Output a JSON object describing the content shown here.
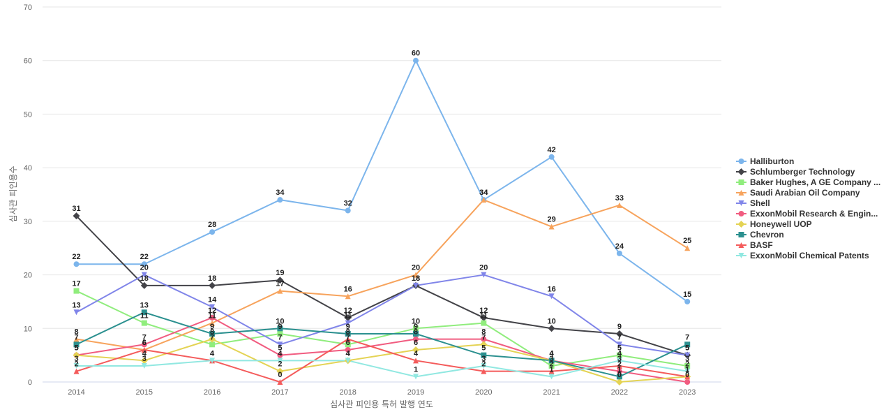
{
  "chart_data": {
    "type": "line",
    "xlabel": "심사관 피인용 특허 발행 연도",
    "ylabel": "심사관 피인용수",
    "ylim": [
      0,
      70
    ],
    "yticks": [
      0,
      10,
      20,
      30,
      40,
      50,
      60,
      70
    ],
    "grid": true,
    "legend_position": "right",
    "categories": [
      "2014",
      "2015",
      "2016",
      "2017",
      "2018",
      "2019",
      "2020",
      "2021",
      "2022",
      "2023"
    ],
    "series": [
      {
        "name": "Halliburton",
        "color": "#7cb5ec",
        "marker": "circle",
        "values": [
          22,
          22,
          28,
          34,
          32,
          60,
          34,
          42,
          24,
          15
        ]
      },
      {
        "name": "Schlumberger Technology",
        "color": "#434348",
        "marker": "diamond",
        "values": [
          31,
          18,
          18,
          19,
          12,
          18,
          12,
          10,
          9,
          5
        ]
      },
      {
        "name": "Baker Hughes, A GE Company ...",
        "color": "#90ed7d",
        "marker": "square",
        "values": [
          17,
          11,
          7,
          9,
          7,
          10,
          11,
          3,
          5,
          3
        ]
      },
      {
        "name": "Saudi Arabian Oil Company",
        "color": "#f7a35c",
        "marker": "triangle",
        "values": [
          8,
          6,
          11,
          17,
          16,
          20,
          34,
          29,
          33,
          25
        ]
      },
      {
        "name": "Shell",
        "color": "#8085e9",
        "marker": "triangle-down",
        "values": [
          13,
          20,
          14,
          7,
          11,
          18,
          20,
          16,
          7,
          5
        ]
      },
      {
        "name": "ExxonMobil Research & Engin...",
        "color": "#f15c80",
        "marker": "circle",
        "values": [
          5,
          7,
          12,
          5,
          6,
          8,
          8,
          4,
          2,
          0
        ]
      },
      {
        "name": "Honeywell UOP",
        "color": "#e4d354",
        "marker": "diamond",
        "values": [
          5,
          4,
          8,
          2,
          4,
          6,
          7,
          4,
          0,
          1
        ]
      },
      {
        "name": "Chevron",
        "color": "#2b908f",
        "marker": "square",
        "values": [
          7,
          13,
          9,
          10,
          9,
          9,
          5,
          4,
          1,
          7
        ]
      },
      {
        "name": "BASF",
        "color": "#f45b5b",
        "marker": "triangle",
        "values": [
          2,
          6,
          4,
          0,
          8,
          4,
          2,
          2,
          3,
          1
        ]
      },
      {
        "name": "ExxonMobil Chemical Patents",
        "color": "#91e8e1",
        "marker": "triangle-down",
        "values": [
          3,
          3,
          4,
          4,
          4,
          1,
          3,
          1,
          4,
          2
        ]
      }
    ]
  }
}
